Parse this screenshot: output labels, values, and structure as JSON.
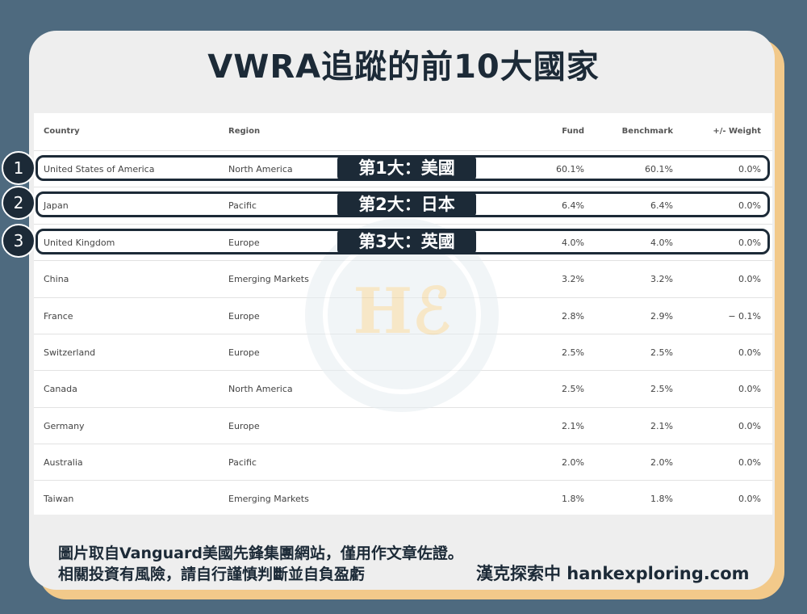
{
  "title": "VWRA追蹤的前10大國家",
  "table": {
    "headers": {
      "country": "Country",
      "region": "Region",
      "fund": "Fund",
      "benchmark": "Benchmark",
      "weight": "+/- Weight"
    },
    "rows": [
      {
        "country": "United States of America",
        "region": "North America",
        "fund": "60.1%",
        "benchmark": "60.1%",
        "weight": "0.0%"
      },
      {
        "country": "Japan",
        "region": "Pacific",
        "fund": "6.4%",
        "benchmark": "6.4%",
        "weight": "0.0%"
      },
      {
        "country": "United Kingdom",
        "region": "Europe",
        "fund": "4.0%",
        "benchmark": "4.0%",
        "weight": "0.0%"
      },
      {
        "country": "China",
        "region": "Emerging Markets",
        "fund": "3.2%",
        "benchmark": "3.2%",
        "weight": "0.0%"
      },
      {
        "country": "France",
        "region": "Europe",
        "fund": "2.8%",
        "benchmark": "2.9%",
        "weight": "− 0.1%"
      },
      {
        "country": "Switzerland",
        "region": "Europe",
        "fund": "2.5%",
        "benchmark": "2.5%",
        "weight": "0.0%"
      },
      {
        "country": "Canada",
        "region": "North America",
        "fund": "2.5%",
        "benchmark": "2.5%",
        "weight": "0.0%"
      },
      {
        "country": "Germany",
        "region": "Europe",
        "fund": "2.1%",
        "benchmark": "2.1%",
        "weight": "0.0%"
      },
      {
        "country": "Australia",
        "region": "Pacific",
        "fund": "2.0%",
        "benchmark": "2.0%",
        "weight": "0.0%"
      },
      {
        "country": "Taiwan",
        "region": "Emerging Markets",
        "fund": "1.8%",
        "benchmark": "1.8%",
        "weight": "0.0%"
      }
    ]
  },
  "highlights": [
    {
      "number": "1",
      "label": "第1大：美國"
    },
    {
      "number": "2",
      "label": "第2大：日本"
    },
    {
      "number": "3",
      "label": "第3大：英國"
    }
  ],
  "watermark": "Hℰ",
  "footer": {
    "line1": "圖片取自Vanguard美國先鋒集團網站，僅用作文章佐證。",
    "line2": "相關投資有風險，請自行謹慎判斷並自負盈虧",
    "brand": "漢克探索中 hankexploring.com"
  },
  "colors": {
    "background": "#4e6a7f",
    "card": "#eeeeee",
    "card_shadow": "#f2c98a",
    "dark": "#1c2a37"
  }
}
